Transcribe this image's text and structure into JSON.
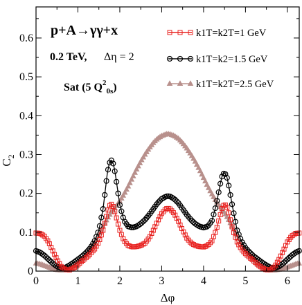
{
  "chart_data": {
    "type": "line",
    "annotations": {
      "process": "p+A→γγ+x",
      "energy": "0.2 TeV,",
      "deta": "Δη = 2",
      "model": "Sat (5 Q²₀ₛ)"
    },
    "xlabel": "Δφ",
    "ylabel": "C₂",
    "xlim": [
      0,
      6.2832
    ],
    "ylim": [
      0,
      0.68
    ],
    "xticks": [
      "0",
      "1",
      "2",
      "3",
      "4",
      "5",
      "6"
    ],
    "yticks": [
      "0",
      "0.1",
      "0.2",
      "0.3",
      "0.4",
      "0.5",
      "0.6"
    ],
    "grid": false,
    "legend_position": "top-right",
    "series": [
      {
        "name": "k1T=k2T=1 GeV",
        "color": "#e8201e",
        "marker": "square",
        "points": [
          [
            0.0,
            0.098
          ],
          [
            0.1,
            0.097
          ],
          [
            0.2,
            0.09
          ],
          [
            0.3,
            0.075
          ],
          [
            0.4,
            0.052
          ],
          [
            0.5,
            0.03
          ],
          [
            0.6,
            0.012
          ],
          [
            0.7,
            0.004
          ],
          [
            0.8,
            0.003
          ],
          [
            0.9,
            0.008
          ],
          [
            1.0,
            0.016
          ],
          [
            1.1,
            0.026
          ],
          [
            1.2,
            0.035
          ],
          [
            1.3,
            0.045
          ],
          [
            1.4,
            0.057
          ],
          [
            1.5,
            0.075
          ],
          [
            1.6,
            0.105
          ],
          [
            1.7,
            0.15
          ],
          [
            1.75,
            0.168
          ],
          [
            1.8,
            0.172
          ],
          [
            1.85,
            0.165
          ],
          [
            1.9,
            0.145
          ],
          [
            2.0,
            0.105
          ],
          [
            2.1,
            0.078
          ],
          [
            2.2,
            0.066
          ],
          [
            2.3,
            0.062
          ],
          [
            2.4,
            0.063
          ],
          [
            2.5,
            0.066
          ],
          [
            2.6,
            0.072
          ],
          [
            2.7,
            0.085
          ],
          [
            2.8,
            0.105
          ],
          [
            2.9,
            0.128
          ],
          [
            3.0,
            0.148
          ],
          [
            3.1,
            0.16
          ],
          [
            3.14,
            0.162
          ],
          [
            3.2,
            0.16
          ],
          [
            3.3,
            0.148
          ],
          [
            3.4,
            0.128
          ],
          [
            3.5,
            0.105
          ],
          [
            3.6,
            0.085
          ],
          [
            3.7,
            0.072
          ],
          [
            3.8,
            0.066
          ],
          [
            3.9,
            0.063
          ],
          [
            4.0,
            0.062
          ],
          [
            4.1,
            0.066
          ],
          [
            4.2,
            0.078
          ],
          [
            4.3,
            0.105
          ],
          [
            4.4,
            0.145
          ],
          [
            4.45,
            0.165
          ],
          [
            4.5,
            0.172
          ],
          [
            4.55,
            0.168
          ],
          [
            4.6,
            0.15
          ],
          [
            4.7,
            0.105
          ],
          [
            4.8,
            0.075
          ],
          [
            4.9,
            0.057
          ],
          [
            5.0,
            0.045
          ],
          [
            5.1,
            0.035
          ],
          [
            5.2,
            0.026
          ],
          [
            5.3,
            0.016
          ],
          [
            5.4,
            0.008
          ],
          [
            5.5,
            0.003
          ],
          [
            5.6,
            0.004
          ],
          [
            5.7,
            0.012
          ],
          [
            5.8,
            0.03
          ],
          [
            5.9,
            0.052
          ],
          [
            6.0,
            0.075
          ],
          [
            6.1,
            0.09
          ],
          [
            6.2,
            0.097
          ],
          [
            6.28,
            0.098
          ]
        ]
      },
      {
        "name": "k1T=k2=1.5 GeV",
        "color": "#000000",
        "marker": "circle",
        "points": [
          [
            0.0,
            0.052
          ],
          [
            0.1,
            0.048
          ],
          [
            0.2,
            0.04
          ],
          [
            0.3,
            0.03
          ],
          [
            0.4,
            0.02
          ],
          [
            0.5,
            0.012
          ],
          [
            0.6,
            0.008
          ],
          [
            0.7,
            0.009
          ],
          [
            0.8,
            0.015
          ],
          [
            0.9,
            0.022
          ],
          [
            1.0,
            0.03
          ],
          [
            1.1,
            0.038
          ],
          [
            1.2,
            0.048
          ],
          [
            1.3,
            0.06
          ],
          [
            1.4,
            0.078
          ],
          [
            1.5,
            0.105
          ],
          [
            1.6,
            0.16
          ],
          [
            1.7,
            0.25
          ],
          [
            1.75,
            0.278
          ],
          [
            1.8,
            0.285
          ],
          [
            1.85,
            0.275
          ],
          [
            1.9,
            0.245
          ],
          [
            2.0,
            0.17
          ],
          [
            2.1,
            0.13
          ],
          [
            2.2,
            0.115
          ],
          [
            2.3,
            0.112
          ],
          [
            2.4,
            0.115
          ],
          [
            2.5,
            0.122
          ],
          [
            2.6,
            0.132
          ],
          [
            2.7,
            0.145
          ],
          [
            2.8,
            0.16
          ],
          [
            2.9,
            0.175
          ],
          [
            3.0,
            0.186
          ],
          [
            3.1,
            0.192
          ],
          [
            3.14,
            0.193
          ],
          [
            3.2,
            0.192
          ],
          [
            3.3,
            0.186
          ],
          [
            3.4,
            0.175
          ],
          [
            3.5,
            0.16
          ],
          [
            3.6,
            0.145
          ],
          [
            3.7,
            0.132
          ],
          [
            3.8,
            0.122
          ],
          [
            3.9,
            0.115
          ],
          [
            4.0,
            0.112
          ],
          [
            4.1,
            0.115
          ],
          [
            4.2,
            0.13
          ],
          [
            4.3,
            0.17
          ],
          [
            4.4,
            0.225
          ],
          [
            4.45,
            0.248
          ],
          [
            4.5,
            0.253
          ],
          [
            4.55,
            0.245
          ],
          [
            4.6,
            0.22
          ],
          [
            4.7,
            0.16
          ],
          [
            4.8,
            0.105
          ],
          [
            4.9,
            0.078
          ],
          [
            5.0,
            0.06
          ],
          [
            5.1,
            0.048
          ],
          [
            5.2,
            0.038
          ],
          [
            5.3,
            0.03
          ],
          [
            5.4,
            0.022
          ],
          [
            5.5,
            0.015
          ],
          [
            5.6,
            0.009
          ],
          [
            5.7,
            0.008
          ],
          [
            5.8,
            0.012
          ],
          [
            5.9,
            0.02
          ],
          [
            6.0,
            0.03
          ],
          [
            6.1,
            0.04
          ],
          [
            6.2,
            0.048
          ],
          [
            6.28,
            0.052
          ]
        ]
      },
      {
        "name": "k1T=k2T=2.5 GeV",
        "color": "#b8908c",
        "marker": "triangle",
        "points": [
          [
            0.0,
            0.02
          ],
          [
            0.1,
            0.018
          ],
          [
            0.2,
            0.014
          ],
          [
            0.3,
            0.01
          ],
          [
            0.4,
            0.006
          ],
          [
            0.5,
            0.003
          ],
          [
            0.6,
            0.002
          ],
          [
            0.7,
            0.003
          ],
          [
            0.8,
            0.006
          ],
          [
            0.9,
            0.012
          ],
          [
            1.0,
            0.02
          ],
          [
            1.1,
            0.03
          ],
          [
            1.2,
            0.042
          ],
          [
            1.3,
            0.058
          ],
          [
            1.4,
            0.075
          ],
          [
            1.5,
            0.095
          ],
          [
            1.6,
            0.115
          ],
          [
            1.7,
            0.135
          ],
          [
            1.8,
            0.152
          ],
          [
            1.9,
            0.165
          ],
          [
            2.0,
            0.18
          ],
          [
            2.1,
            0.198
          ],
          [
            2.2,
            0.218
          ],
          [
            2.3,
            0.24
          ],
          [
            2.4,
            0.262
          ],
          [
            2.5,
            0.282
          ],
          [
            2.6,
            0.3
          ],
          [
            2.7,
            0.316
          ],
          [
            2.8,
            0.33
          ],
          [
            2.9,
            0.341
          ],
          [
            3.0,
            0.348
          ],
          [
            3.1,
            0.352
          ],
          [
            3.14,
            0.353
          ],
          [
            3.2,
            0.352
          ],
          [
            3.3,
            0.348
          ],
          [
            3.4,
            0.341
          ],
          [
            3.5,
            0.33
          ],
          [
            3.6,
            0.316
          ],
          [
            3.7,
            0.3
          ],
          [
            3.8,
            0.282
          ],
          [
            3.9,
            0.262
          ],
          [
            4.0,
            0.24
          ],
          [
            4.1,
            0.218
          ],
          [
            4.2,
            0.198
          ],
          [
            4.3,
            0.18
          ],
          [
            4.4,
            0.165
          ],
          [
            4.5,
            0.15
          ],
          [
            4.6,
            0.132
          ],
          [
            4.7,
            0.112
          ],
          [
            4.8,
            0.092
          ],
          [
            4.9,
            0.072
          ],
          [
            5.0,
            0.055
          ],
          [
            5.1,
            0.04
          ],
          [
            5.2,
            0.028
          ],
          [
            5.3,
            0.018
          ],
          [
            5.4,
            0.01
          ],
          [
            5.5,
            0.005
          ],
          [
            5.6,
            0.002
          ],
          [
            5.7,
            0.002
          ],
          [
            5.8,
            0.004
          ],
          [
            5.9,
            0.007
          ],
          [
            6.0,
            0.01
          ],
          [
            6.1,
            0.014
          ],
          [
            6.2,
            0.018
          ],
          [
            6.28,
            0.02
          ]
        ]
      }
    ]
  }
}
